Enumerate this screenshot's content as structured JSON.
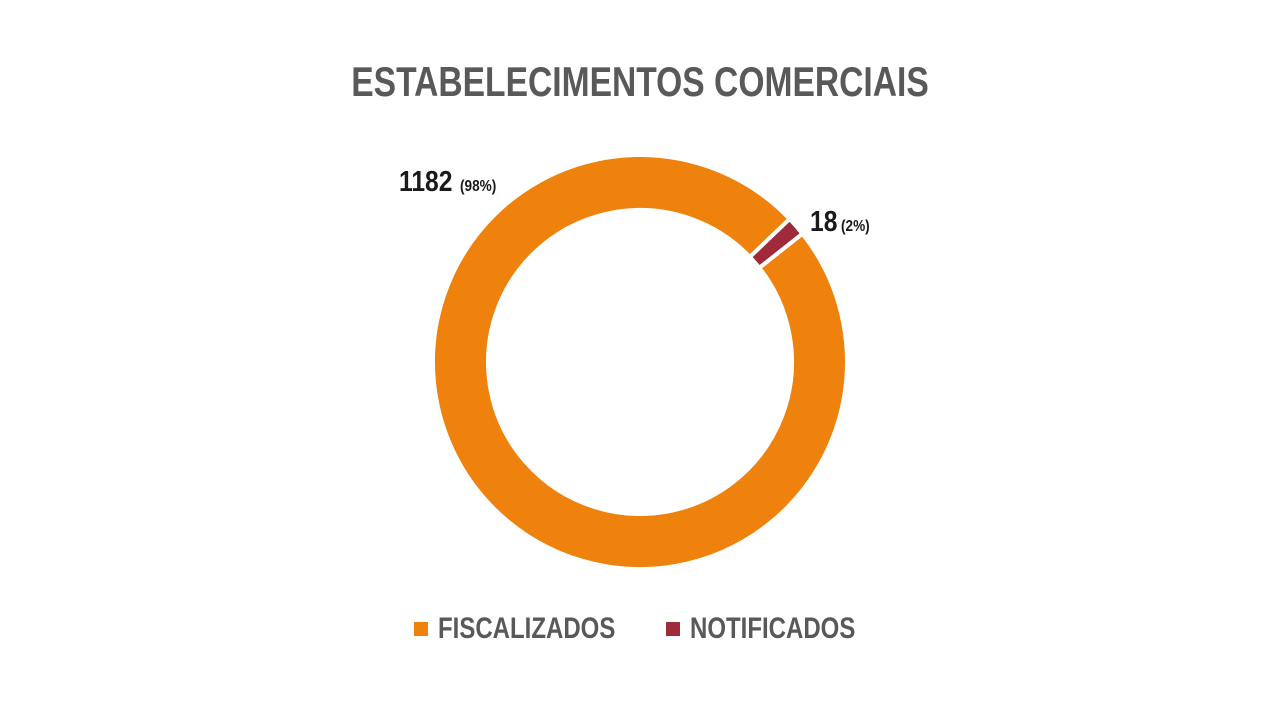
{
  "chart_data": {
    "type": "pie",
    "title": "ESTABELECIMENTOS COMERCIAIS",
    "categories": [
      "FISCALIZADOS",
      "NOTIFICADOS"
    ],
    "values": [
      1182,
      18
    ],
    "labels": [
      {
        "value": "1182",
        "pct": "(98%)"
      },
      {
        "value": "18",
        "pct": "(2%)"
      }
    ],
    "colors": [
      "#ef820d",
      "#9e2a3a"
    ],
    "legend": "bottom",
    "donut": true
  }
}
